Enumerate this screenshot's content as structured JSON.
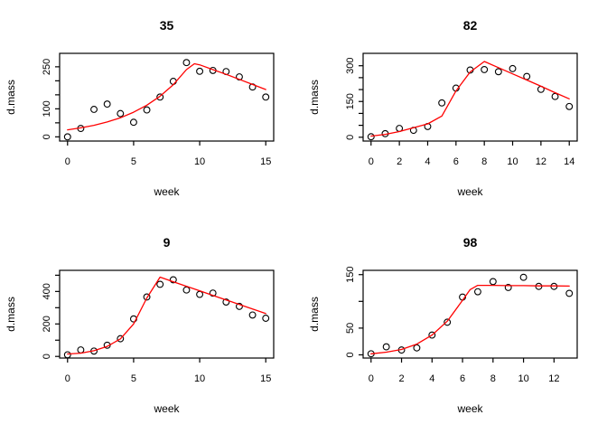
{
  "figure": {
    "background": "#ffffff",
    "axis_color": "#000000",
    "fit_line_color": "#ff0000",
    "point_style": "open-circle"
  },
  "chart_data": [
    {
      "type": "scatter",
      "title": "35",
      "xlabel": "week",
      "ylabel": "d.mass",
      "x": [
        0,
        1,
        2,
        3,
        4,
        5,
        6,
        7,
        8,
        9,
        10,
        11,
        12,
        13,
        14,
        15
      ],
      "points": [
        0,
        30,
        98,
        117,
        83,
        52,
        96,
        142,
        198,
        265,
        234,
        237,
        233,
        214,
        178,
        142
      ],
      "fit": [
        [
          0,
          25
        ],
        [
          1,
          32
        ],
        [
          2,
          41
        ],
        [
          3,
          53
        ],
        [
          4,
          68
        ],
        [
          5,
          88
        ],
        [
          6,
          113
        ],
        [
          7,
          145
        ],
        [
          8,
          186
        ],
        [
          9,
          240
        ],
        [
          9.6,
          261
        ],
        [
          10,
          257
        ],
        [
          11,
          240
        ],
        [
          12,
          223
        ],
        [
          13,
          205
        ],
        [
          14,
          187
        ],
        [
          15,
          169
        ]
      ],
      "xticks": [
        0,
        5,
        10,
        15
      ],
      "xtick_labels": [
        "0",
        "5",
        "10",
        "15"
      ],
      "yticks": [
        0,
        50,
        100,
        150,
        200,
        250
      ],
      "ytick_labels": [
        "0",
        "",
        "100",
        "",
        "",
        "250"
      ],
      "xlim": [
        -0.6,
        15.6
      ],
      "ylim": [
        -15,
        298
      ],
      "legend": "none",
      "grid": false
    },
    {
      "type": "scatter",
      "title": "82",
      "xlabel": "week",
      "ylabel": "d.mass",
      "x": [
        0,
        1,
        2,
        3,
        4,
        5,
        6,
        7,
        8,
        9,
        10,
        11,
        12,
        13,
        14
      ],
      "points": [
        2,
        15,
        37,
        29,
        45,
        144,
        206,
        282,
        284,
        275,
        288,
        255,
        201,
        171,
        129
      ],
      "fit": [
        [
          0,
          5
        ],
        [
          1,
          12
        ],
        [
          2,
          24
        ],
        [
          3,
          40
        ],
        [
          4,
          56
        ],
        [
          5,
          89
        ],
        [
          6,
          194
        ],
        [
          7,
          274
        ],
        [
          8,
          318
        ],
        [
          9,
          292
        ],
        [
          10,
          266
        ],
        [
          11,
          240
        ],
        [
          12,
          214
        ],
        [
          13,
          187
        ],
        [
          14,
          161
        ]
      ],
      "xticks": [
        0,
        2,
        4,
        6,
        8,
        10,
        12,
        14
      ],
      "xtick_labels": [
        "0",
        "2",
        "4",
        "6",
        "8",
        "10",
        "12",
        "14"
      ],
      "yticks": [
        0,
        50,
        100,
        150,
        200,
        250,
        300
      ],
      "ytick_labels": [
        "0",
        "",
        "",
        "150",
        "",
        "",
        "300"
      ],
      "xlim": [
        -0.56,
        14.56
      ],
      "ylim": [
        -16,
        352
      ],
      "legend": "none",
      "grid": false
    },
    {
      "type": "scatter",
      "title": "9",
      "xlabel": "week",
      "ylabel": "d.mass",
      "x": [
        0,
        1,
        2,
        3,
        4,
        5,
        6,
        7,
        8,
        9,
        10,
        11,
        12,
        13,
        14,
        15
      ],
      "points": [
        10,
        40,
        33,
        69,
        109,
        231,
        366,
        444,
        472,
        409,
        382,
        390,
        335,
        308,
        255,
        235
      ],
      "fit": [
        [
          0,
          15
        ],
        [
          1,
          20
        ],
        [
          2,
          35
        ],
        [
          3,
          62
        ],
        [
          4,
          108
        ],
        [
          5,
          200
        ],
        [
          6,
          360
        ],
        [
          7,
          488
        ],
        [
          8,
          460
        ],
        [
          9,
          432
        ],
        [
          10,
          404
        ],
        [
          11,
          376
        ],
        [
          12,
          348
        ],
        [
          13,
          320
        ],
        [
          14,
          292
        ],
        [
          15,
          264
        ]
      ],
      "xticks": [
        0,
        5,
        10,
        15
      ],
      "xtick_labels": [
        "0",
        "5",
        "10",
        "15"
      ],
      "yticks": [
        0,
        100,
        200,
        300,
        400,
        500
      ],
      "ytick_labels": [
        "0",
        "",
        "200",
        "",
        "400",
        ""
      ],
      "xlim": [
        -0.6,
        15.6
      ],
      "ylim": [
        -10,
        530
      ],
      "legend": "none",
      "grid": false
    },
    {
      "type": "scatter",
      "title": "98",
      "xlabel": "week",
      "ylabel": "d.mass",
      "x": [
        0,
        1,
        2,
        3,
        4,
        5,
        6,
        7,
        8,
        9,
        10,
        11,
        12,
        13
      ],
      "points": [
        2,
        15,
        9,
        13,
        37,
        61,
        108,
        118,
        137,
        126,
        145,
        128,
        128,
        115
      ],
      "fit": [
        [
          0,
          2
        ],
        [
          1,
          5
        ],
        [
          2,
          10
        ],
        [
          3,
          20
        ],
        [
          4,
          37
        ],
        [
          5,
          63
        ],
        [
          6,
          102
        ],
        [
          6.5,
          122
        ],
        [
          7,
          130
        ],
        [
          8,
          130
        ],
        [
          9,
          129.5
        ],
        [
          10,
          129.5
        ],
        [
          11,
          129
        ],
        [
          12,
          129
        ],
        [
          13,
          128.5
        ]
      ],
      "xticks": [
        0,
        2,
        4,
        6,
        8,
        10,
        12
      ],
      "xtick_labels": [
        "0",
        "2",
        "4",
        "6",
        "8",
        "10",
        "12"
      ],
      "yticks": [
        0,
        50,
        100,
        150
      ],
      "ytick_labels": [
        "0",
        "50",
        "",
        "150"
      ],
      "xlim": [
        -0.52,
        13.52
      ],
      "ylim": [
        -6,
        158
      ],
      "legend": "none",
      "grid": false
    }
  ]
}
